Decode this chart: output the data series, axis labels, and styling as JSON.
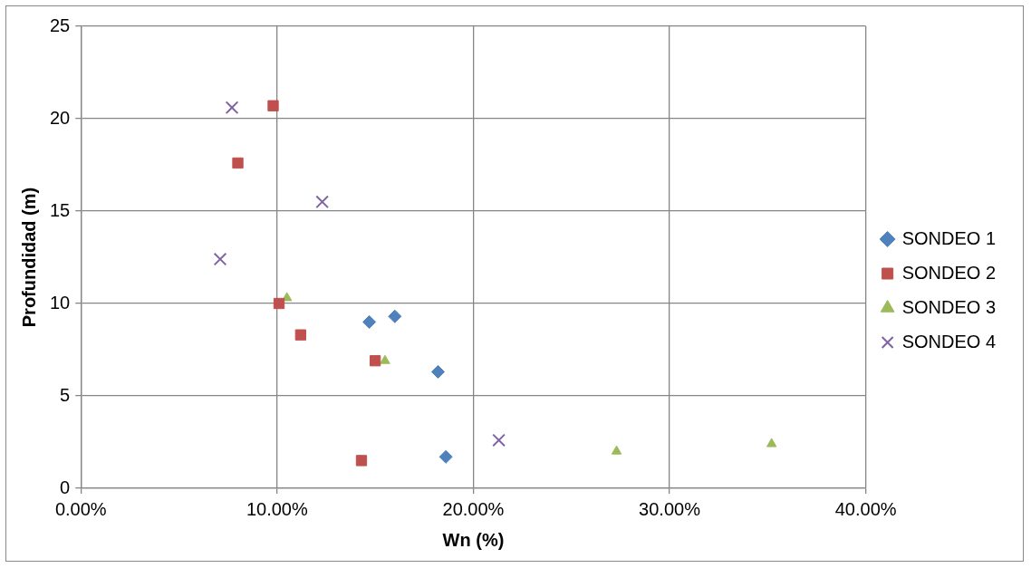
{
  "chart_data": {
    "type": "scatter",
    "xlabel": "Wn (%)",
    "ylabel": "Profundidad (m)",
    "xlim": [
      0,
      40
    ],
    "xticks": [
      {
        "value": 0,
        "label": "0.00%"
      },
      {
        "value": 10,
        "label": "10.00%"
      },
      {
        "value": 20,
        "label": "20.00%"
      },
      {
        "value": 30,
        "label": "30.00%"
      },
      {
        "value": 40,
        "label": "40.00%"
      }
    ],
    "ylim": [
      0,
      25
    ],
    "yticks": [
      0,
      5,
      10,
      15,
      20,
      25
    ],
    "grid": true,
    "legend": "right",
    "series": [
      {
        "name": "SONDEO 1",
        "color": "#4f81bd",
        "marker": "diamond",
        "x": [
          14.7,
          16.0,
          18.2,
          18.6
        ],
        "values": [
          9.0,
          9.3,
          6.3,
          1.7
        ]
      },
      {
        "name": "SONDEO 2",
        "color": "#c0504d",
        "marker": "square",
        "x": [
          9.8,
          8.0,
          10.1,
          11.2,
          15.0,
          14.3
        ],
        "values": [
          20.7,
          17.6,
          10.0,
          8.3,
          6.9,
          1.5
        ]
      },
      {
        "name": "SONDEO 3",
        "color": "#9bbb59",
        "marker": "triangle",
        "x": [
          10.5,
          15.5,
          27.3,
          35.2
        ],
        "values": [
          10.3,
          6.9,
          2.0,
          2.4
        ]
      },
      {
        "name": "SONDEO 4",
        "color": "#8064a2",
        "marker": "cross",
        "x": [
          7.7,
          12.3,
          7.1,
          21.3
        ],
        "values": [
          20.6,
          15.5,
          12.4,
          2.6
        ]
      }
    ]
  }
}
